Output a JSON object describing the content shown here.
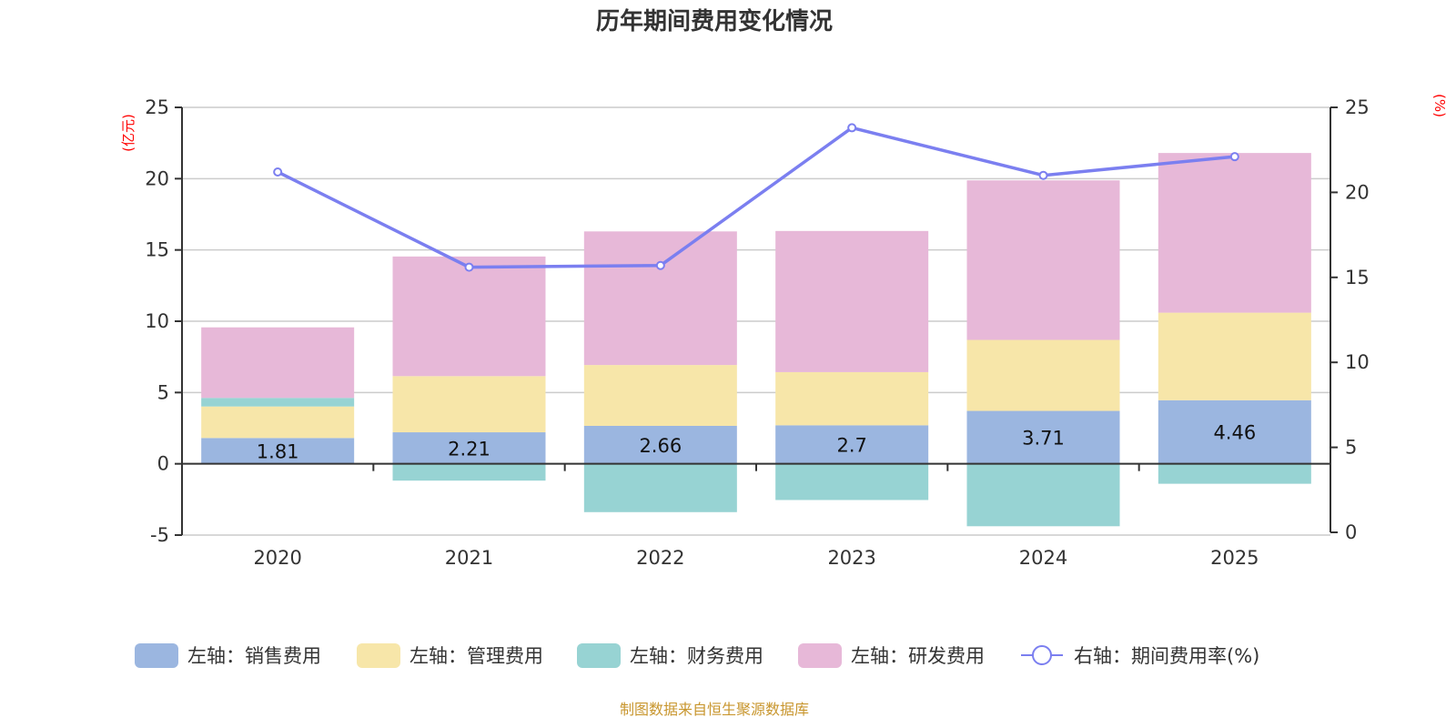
{
  "chart_data": {
    "type": "bar",
    "title": "历年期间费用变化情况",
    "source_note": "制图数据来自恒生聚源数据库",
    "categories": [
      "2020",
      "2021",
      "2022",
      "2023",
      "2024",
      "2025"
    ],
    "left_axis": {
      "unit_label": "(亿元)",
      "ylim": [
        -5,
        25
      ],
      "ticks": [
        -5,
        0,
        5,
        10,
        15,
        20,
        25
      ]
    },
    "right_axis": {
      "unit_label": "(%)",
      "ylim": [
        0,
        25
      ],
      "ticks": [
        0,
        5,
        10,
        15,
        20,
        25
      ]
    },
    "grid": true,
    "legend_position": "bottom",
    "series": [
      {
        "name": "左轴：销售费用",
        "type": "bar",
        "axis": "left",
        "stack": true,
        "color": "#9bb6e0",
        "values": [
          1.81,
          2.21,
          2.66,
          2.7,
          3.71,
          4.46
        ],
        "show_labels": true
      },
      {
        "name": "左轴：管理费用",
        "type": "bar",
        "axis": "left",
        "stack": true,
        "color": "#f7e6a9",
        "values": [
          2.21,
          3.94,
          4.27,
          3.73,
          4.98,
          6.14
        ],
        "show_labels": false
      },
      {
        "name": "左轴：财务费用",
        "type": "bar",
        "axis": "left",
        "stack": true,
        "color": "#97d3d3",
        "values": [
          0.6,
          -1.18,
          -3.39,
          -2.54,
          -4.38,
          -1.4
        ],
        "show_labels": false
      },
      {
        "name": "左轴：研发费用",
        "type": "bar",
        "axis": "left",
        "stack": true,
        "color": "#e7b8d8",
        "values": [
          4.95,
          8.39,
          9.37,
          9.9,
          11.19,
          11.2
        ],
        "show_labels": false
      },
      {
        "name": "右轴：期间费用率(%)",
        "type": "line",
        "axis": "right",
        "color": "#7b7ff0",
        "values": [
          21.2,
          15.6,
          15.7,
          23.8,
          21.0,
          22.1
        ]
      }
    ],
    "bar_labels": [
      "1.81",
      "2.21",
      "2.66",
      "2.7",
      "3.71",
      "4.46"
    ]
  }
}
